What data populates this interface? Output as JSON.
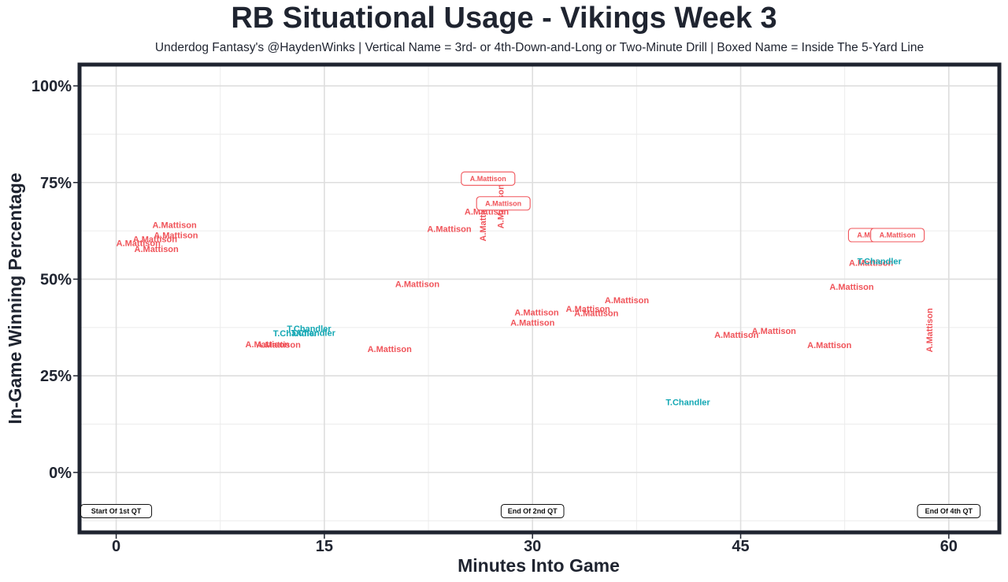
{
  "chart_data": {
    "type": "scatter",
    "title": "RB Situational Usage - Vikings Week 3",
    "subtitle": "Underdog Fantasy's @HaydenWinks | Vertical Name = 3rd- or 4th-Down-and-Long or Two-Minute Drill | Boxed Name = Inside The 5-Yard Line",
    "xlabel": "Minutes Into Game",
    "ylabel": "In-Game Winning Percentage",
    "xlim": [
      -2.5,
      63.5
    ],
    "ylim": [
      -15,
      105
    ],
    "x_ticks": [
      0,
      15,
      30,
      45,
      60
    ],
    "x_tick_labels": [
      "0",
      "15",
      "30",
      "45",
      "60"
    ],
    "y_ticks": [
      0,
      25,
      50,
      75,
      100
    ],
    "y_tick_labels": [
      "0%",
      "25%",
      "50%",
      "75%",
      "100%"
    ],
    "grid": true,
    "colors": {
      "A.Mattison": "#f0545a",
      "T.Chandler": "#14a8b4"
    },
    "quarter_markers": [
      {
        "x": 0,
        "y": -10,
        "label": "Start Of 1st QT"
      },
      {
        "x": 30,
        "y": -10,
        "label": "End Of 2nd QT"
      },
      {
        "x": 60,
        "y": -10,
        "label": "End Of 4th QT"
      }
    ],
    "points": [
      {
        "x": 1.6,
        "y": 59.4,
        "label": "A.Mattison",
        "style": "normal"
      },
      {
        "x": 2.9,
        "y": 57.8,
        "label": "A.Mattison",
        "style": "normal"
      },
      {
        "x": 2.8,
        "y": 60.4,
        "label": "A.Mattison",
        "style": "normal"
      },
      {
        "x": 4.3,
        "y": 61.4,
        "label": "A.Mattison",
        "style": "normal"
      },
      {
        "x": 4.2,
        "y": 64.1,
        "label": "A.Mattison",
        "style": "normal"
      },
      {
        "x": 10.9,
        "y": 33.2,
        "label": "A.Mattison",
        "style": "normal"
      },
      {
        "x": 11.7,
        "y": 33.1,
        "label": "A.Mattison",
        "style": "normal"
      },
      {
        "x": 12.9,
        "y": 36.0,
        "label": "T.Chandler",
        "style": "normal"
      },
      {
        "x": 13.9,
        "y": 37.3,
        "label": "T.Chandler",
        "style": "normal"
      },
      {
        "x": 14.2,
        "y": 36.1,
        "label": "T.Chandler",
        "style": "normal"
      },
      {
        "x": 19.7,
        "y": 32.0,
        "label": "A.Mattison",
        "style": "normal"
      },
      {
        "x": 21.7,
        "y": 48.8,
        "label": "A.Mattison",
        "style": "normal"
      },
      {
        "x": 24.0,
        "y": 63.0,
        "label": "A.Mattison",
        "style": "normal"
      },
      {
        "x": 26.7,
        "y": 67.5,
        "label": "A.Mattison",
        "style": "normal"
      },
      {
        "x": 26.4,
        "y": 65.5,
        "label": "A.Mattison",
        "style": "vertical"
      },
      {
        "x": 27.7,
        "y": 68.8,
        "label": "A.Mattison",
        "style": "vertical"
      },
      {
        "x": 26.8,
        "y": 76.0,
        "label": "A.Mattison",
        "style": "boxed"
      },
      {
        "x": 27.9,
        "y": 69.6,
        "label": "A.Mattison",
        "style": "boxed"
      },
      {
        "x": 30.3,
        "y": 41.4,
        "label": "A.Mattison",
        "style": "normal"
      },
      {
        "x": 30.0,
        "y": 38.8,
        "label": "A.Mattison",
        "style": "normal"
      },
      {
        "x": 34.0,
        "y": 42.4,
        "label": "A.Mattison",
        "style": "normal"
      },
      {
        "x": 34.6,
        "y": 41.2,
        "label": "A.Mattison",
        "style": "normal"
      },
      {
        "x": 36.8,
        "y": 44.6,
        "label": "A.Mattison",
        "style": "normal"
      },
      {
        "x": 41.2,
        "y": 18.2,
        "label": "T.Chandler",
        "style": "normal"
      },
      {
        "x": 44.7,
        "y": 35.6,
        "label": "A.Mattison",
        "style": "normal"
      },
      {
        "x": 47.4,
        "y": 36.6,
        "label": "A.Mattison",
        "style": "normal"
      },
      {
        "x": 51.4,
        "y": 33.0,
        "label": "A.Mattison",
        "style": "normal"
      },
      {
        "x": 53.0,
        "y": 48.1,
        "label": "A.Mattison",
        "style": "normal"
      },
      {
        "x": 54.4,
        "y": 54.3,
        "label": "A.Mattison",
        "style": "normal"
      },
      {
        "x": 55.0,
        "y": 54.7,
        "label": "T.Chandler",
        "style": "normal"
      },
      {
        "x": 54.7,
        "y": 61.4,
        "label": "A.Mattison",
        "style": "boxed"
      },
      {
        "x": 56.3,
        "y": 61.4,
        "label": "A.Mattison",
        "style": "boxed"
      },
      {
        "x": 58.6,
        "y": 36.8,
        "label": "A.Mattison",
        "style": "vertical"
      }
    ]
  }
}
